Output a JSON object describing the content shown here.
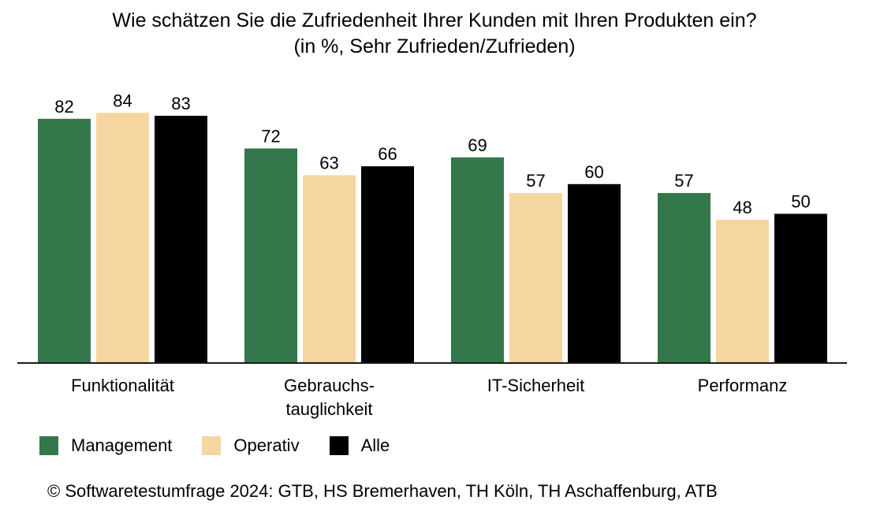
{
  "chart_data": {
    "type": "bar",
    "title": "Wie schätzen Sie die Zufriedenheit Ihrer Kunden mit Ihren Produkten ein?",
    "subtitle": "(in %, Sehr Zufrieden/Zufrieden)",
    "xlabel": "",
    "ylabel": "",
    "ylim": [
      0,
      100
    ],
    "grid": false,
    "legend_position": "bottom-left",
    "categories": [
      [
        "Funktionalität"
      ],
      [
        "Gebrauchs-",
        "tauglichkeit"
      ],
      [
        "IT-Sicherheit"
      ],
      [
        "Performanz"
      ]
    ],
    "series": [
      {
        "name": "Management",
        "color": "#34774a",
        "values": [
          82,
          72,
          69,
          57
        ]
      },
      {
        "name": "Operativ",
        "color": "#f5d6a1",
        "values": [
          84,
          63,
          57,
          48
        ]
      },
      {
        "name": "Alle",
        "color": "#000000",
        "values": [
          83,
          66,
          60,
          50
        ]
      }
    ]
  },
  "footer": {
    "copyright_symbol": "©",
    "text": "Softwaretestumfrage 2024: GTB, HS Bremerhaven, TH Köln, TH Aschaffenburg, ATB"
  }
}
